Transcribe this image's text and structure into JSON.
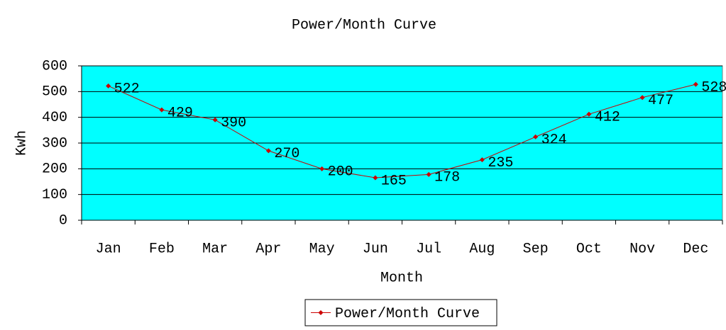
{
  "chart_data": {
    "type": "line",
    "title": "Power/Month Curve",
    "x_label": "Month",
    "y_label": "Kwh",
    "categories": [
      "Jan",
      "Feb",
      "Mar",
      "Apr",
      "May",
      "Jun",
      "Jul",
      "Aug",
      "Sep",
      "Oct",
      "Nov",
      "Dec"
    ],
    "series": [
      {
        "name": "Power/Month Curve",
        "color": "#cc0000",
        "values": [
          522,
          429,
          390,
          270,
          200,
          165,
          178,
          235,
          324,
          412,
          477,
          528
        ]
      }
    ],
    "ylim": [
      0,
      600
    ],
    "yticks": [
      0,
      100,
      200,
      300,
      400,
      500,
      600
    ],
    "grid": true,
    "plot_background": "#00ffff",
    "legend": "bottom"
  }
}
